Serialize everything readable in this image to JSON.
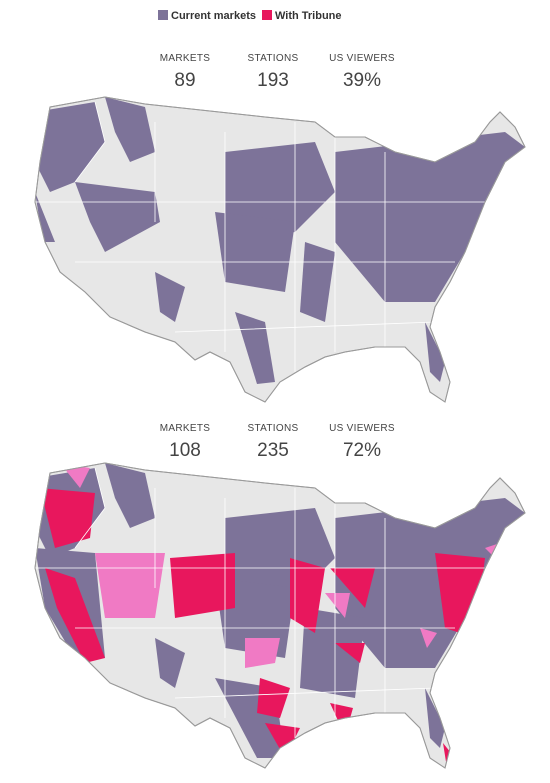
{
  "legend": [
    {
      "label": "Current markets",
      "color": "#7d7399"
    },
    {
      "label": "With Tribune",
      "color": "#e8175d"
    }
  ],
  "panels": [
    {
      "stats": [
        {
          "label": "MARKETS",
          "value": "89"
        },
        {
          "label": "STATIONS",
          "value": "193"
        },
        {
          "label": "US VIEWERS",
          "value": "39%"
        }
      ]
    },
    {
      "stats": [
        {
          "label": "MARKETS",
          "value": "108"
        },
        {
          "label": "STATIONS",
          "value": "235"
        },
        {
          "label": "US VIEWERS",
          "value": "72%"
        }
      ]
    }
  ]
}
